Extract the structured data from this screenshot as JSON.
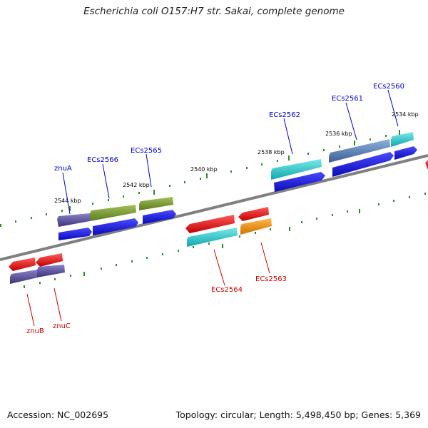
{
  "title": "Escherichia coli O157:H7 str. Sakai, complete genome",
  "footer": {
    "accession": "Accession: NC_002695",
    "summary": "Topology: circular; Length: 5,498,450 bp; Genes: 5,369"
  },
  "scale_labels": [
    "2544 kbp",
    "2542 kbp",
    "2540 kbp",
    "2538 kbp",
    "2536 kbp",
    "2534 kbp"
  ],
  "genes_top": [
    "znuA",
    "ECs2566",
    "ECs2565",
    "ECs2562",
    "ECs2561",
    "ECs2560"
  ],
  "genes_bottom": [
    "znuB",
    "znuC",
    "ECs2564",
    "ECs2563"
  ],
  "colors": {
    "top_label": "#0000cc",
    "bottom_label": "#cc0000",
    "backbone": "#808080",
    "tick": "#2a8a2a",
    "cds_blue": "#1414e0",
    "purple": "#4a3f8c",
    "olive": "#6f8f2a",
    "cyan": "#18c4c8",
    "red": "#e80f0f",
    "orange": "#f08a10",
    "steel": "#4f79b0"
  }
}
